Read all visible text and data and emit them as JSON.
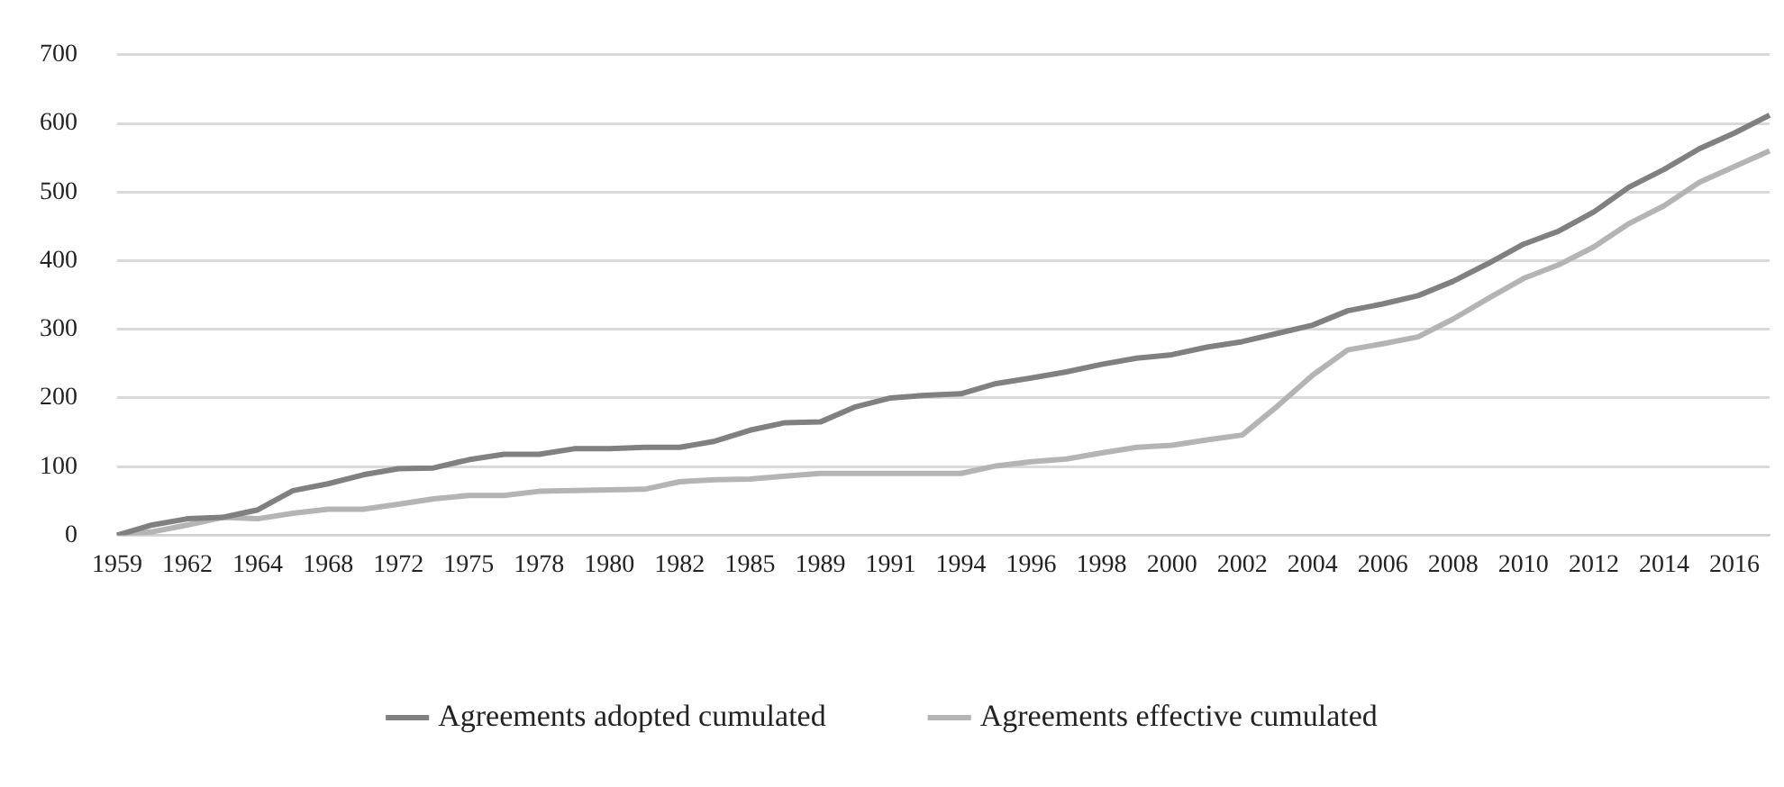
{
  "chart_data": {
    "type": "line",
    "categories": [
      "1959",
      null,
      "1962",
      null,
      "1964",
      null,
      "1968",
      null,
      "1972",
      null,
      "1975",
      null,
      "1978",
      null,
      "1980",
      null,
      "1982",
      null,
      "1985",
      null,
      "1989",
      null,
      "1991",
      null,
      "1994",
      null,
      "1996",
      null,
      "1998",
      null,
      "2000",
      null,
      "2002",
      null,
      "2004",
      null,
      "2006",
      null,
      "2008",
      null,
      "2010",
      null,
      "2012",
      null,
      "2014",
      null,
      "2016",
      null
    ],
    "series": [
      {
        "name": "Agreements adopted cumulated",
        "color": "#808080",
        "values": [
          0,
          15,
          24,
          26,
          37,
          65,
          75,
          88,
          97,
          98,
          110,
          118,
          118,
          126,
          126,
          128,
          128,
          137,
          153,
          164,
          165,
          187,
          200,
          204,
          206,
          221,
          229,
          238,
          249,
          258,
          263,
          274,
          282,
          294,
          306,
          327,
          337,
          349,
          370,
          396,
          424,
          443,
          471,
          507,
          533,
          563,
          586,
          612
        ]
      },
      {
        "name": "Agreements effective cumulated",
        "color": "#b4b4b4",
        "values": [
          0,
          5,
          15,
          26,
          24,
          32,
          38,
          38,
          45,
          53,
          58,
          58,
          64,
          65,
          66,
          67,
          78,
          81,
          82,
          86,
          90,
          90,
          90,
          90,
          90,
          101,
          107,
          111,
          120,
          128,
          131,
          139,
          146,
          188,
          233,
          270,
          279,
          289,
          315,
          345,
          374,
          394,
          420,
          454,
          480,
          514,
          537,
          560
        ]
      }
    ],
    "ylim": [
      0,
      700
    ],
    "yticks": [
      0,
      100,
      200,
      300,
      400,
      500,
      600,
      700
    ],
    "grid": "y",
    "legend": "bottom",
    "marker": "none",
    "line_style": "solid"
  }
}
